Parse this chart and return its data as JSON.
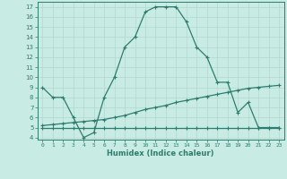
{
  "xlabel": "Humidex (Indice chaleur)",
  "x_curve1": [
    0,
    1,
    2,
    3,
    4,
    5,
    6,
    7,
    8,
    9,
    10,
    11,
    12,
    13,
    14,
    15,
    16,
    17,
    18,
    19,
    20,
    21,
    22,
    23
  ],
  "y_curve1": [
    9,
    8,
    8,
    6,
    4,
    4.5,
    8,
    10,
    13,
    14,
    16.5,
    17,
    17,
    17,
    15.5,
    13,
    12,
    9.5,
    9.5,
    6.5,
    7.5,
    5,
    5,
    5
  ],
  "x_curve2": [
    0,
    1,
    2,
    3,
    4,
    5,
    6,
    7,
    8,
    9,
    10,
    11,
    12,
    13,
    14,
    15,
    16,
    17,
    18,
    19,
    20,
    21,
    22,
    23
  ],
  "y_curve2": [
    5.2,
    5.3,
    5.4,
    5.5,
    5.6,
    5.7,
    5.8,
    6.0,
    6.2,
    6.5,
    6.8,
    7.0,
    7.2,
    7.5,
    7.7,
    7.9,
    8.1,
    8.3,
    8.5,
    8.7,
    8.9,
    9.0,
    9.1,
    9.2
  ],
  "x_curve3": [
    0,
    1,
    2,
    3,
    4,
    5,
    6,
    7,
    8,
    9,
    10,
    11,
    12,
    13,
    14,
    15,
    16,
    17,
    18,
    19,
    20,
    21,
    22,
    23
  ],
  "y_curve3": [
    5.0,
    5.0,
    5.0,
    5.0,
    5.0,
    5.0,
    5.0,
    5.0,
    5.0,
    5.0,
    5.0,
    5.0,
    5.0,
    5.0,
    5.0,
    5.0,
    5.0,
    5.0,
    5.0,
    5.0,
    5.0,
    5.0,
    5.0,
    5.0
  ],
  "line_color": "#2d7d6e",
  "bg_color": "#c8ebe3",
  "grid_color": "#b0d8d0",
  "xlim": [
    -0.5,
    23.5
  ],
  "ylim": [
    3.8,
    17.5
  ],
  "yticks": [
    4,
    5,
    6,
    7,
    8,
    9,
    10,
    11,
    12,
    13,
    14,
    15,
    16,
    17
  ],
  "xticks": [
    0,
    1,
    2,
    3,
    4,
    5,
    6,
    7,
    8,
    9,
    10,
    11,
    12,
    13,
    14,
    15,
    16,
    17,
    18,
    19,
    20,
    21,
    22,
    23
  ],
  "xtick_labels": [
    "0",
    "1",
    "2",
    "3",
    "4",
    "5",
    "6",
    "7",
    "8",
    "9",
    "10",
    "11",
    "12",
    "13",
    "14",
    "15",
    "16",
    "17",
    "18",
    "19",
    "20",
    "21",
    "22",
    "23"
  ],
  "marker": "+",
  "marker_size": 3.5,
  "linewidth": 0.9
}
